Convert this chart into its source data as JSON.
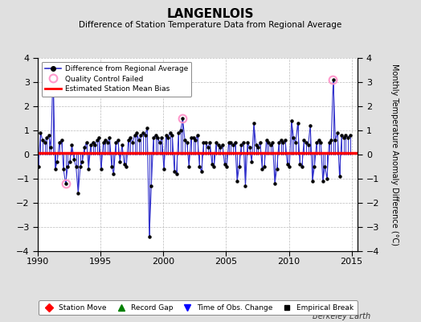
{
  "title": "LANGENLOIS",
  "subtitle": "Difference of Station Temperature Data from Regional Average",
  "ylabel_right": "Monthly Temperature Anomaly Difference (°C)",
  "xlim": [
    1990,
    2015.5
  ],
  "ylim": [
    -4,
    4
  ],
  "yticks": [
    -4,
    -3,
    -2,
    -1,
    0,
    1,
    2,
    3,
    4
  ],
  "xticks": [
    1990,
    1995,
    2000,
    2005,
    2010,
    2015
  ],
  "bias_line": 0.08,
  "bias_color": "#ff0000",
  "line_color": "#3333cc",
  "dot_color": "#000000",
  "qc_color": "#ff99cc",
  "background_color": "#e0e0e0",
  "plot_bg_color": "#ffffff",
  "watermark": "Berkeley Earth",
  "time_of_obs_change_x": 1998.75,
  "qc_failed_points": [
    [
      1992.25,
      -1.2
    ],
    [
      2001.5,
      1.5
    ],
    [
      2013.5,
      3.1
    ]
  ],
  "ts_data": [
    [
      1990.04,
      -0.5
    ],
    [
      1990.21,
      0.9
    ],
    [
      1990.38,
      0.6
    ],
    [
      1990.54,
      0.5
    ],
    [
      1990.71,
      0.7
    ],
    [
      1990.88,
      0.8
    ],
    [
      1991.04,
      0.3
    ],
    [
      1991.21,
      3.5
    ],
    [
      1991.38,
      -0.6
    ],
    [
      1991.54,
      -0.3
    ],
    [
      1991.71,
      0.5
    ],
    [
      1991.88,
      0.6
    ],
    [
      1992.04,
      -0.6
    ],
    [
      1992.21,
      -1.2
    ],
    [
      1992.38,
      -0.5
    ],
    [
      1992.54,
      -0.3
    ],
    [
      1992.71,
      0.4
    ],
    [
      1992.88,
      -0.2
    ],
    [
      1993.04,
      -0.5
    ],
    [
      1993.21,
      -1.6
    ],
    [
      1993.38,
      -0.5
    ],
    [
      1993.54,
      -0.3
    ],
    [
      1993.71,
      0.3
    ],
    [
      1993.88,
      0.5
    ],
    [
      1994.04,
      -0.6
    ],
    [
      1994.21,
      0.4
    ],
    [
      1994.38,
      0.5
    ],
    [
      1994.54,
      0.4
    ],
    [
      1994.71,
      0.6
    ],
    [
      1994.88,
      0.7
    ],
    [
      1995.04,
      -0.6
    ],
    [
      1995.21,
      0.5
    ],
    [
      1995.38,
      0.6
    ],
    [
      1995.54,
      0.5
    ],
    [
      1995.71,
      0.7
    ],
    [
      1995.88,
      -0.5
    ],
    [
      1996.04,
      -0.8
    ],
    [
      1996.21,
      0.5
    ],
    [
      1996.38,
      0.6
    ],
    [
      1996.54,
      -0.3
    ],
    [
      1996.71,
      0.4
    ],
    [
      1996.88,
      -0.4
    ],
    [
      1997.04,
      -0.5
    ],
    [
      1997.21,
      0.6
    ],
    [
      1997.38,
      0.7
    ],
    [
      1997.54,
      0.5
    ],
    [
      1997.71,
      0.8
    ],
    [
      1997.88,
      0.9
    ],
    [
      1998.04,
      0.6
    ],
    [
      1998.21,
      0.8
    ],
    [
      1998.38,
      0.9
    ],
    [
      1998.54,
      0.8
    ],
    [
      1998.71,
      1.1
    ],
    [
      1998.88,
      -3.4
    ],
    [
      1999.04,
      -1.3
    ],
    [
      1999.21,
      0.7
    ],
    [
      1999.38,
      0.8
    ],
    [
      1999.54,
      0.7
    ],
    [
      1999.71,
      0.5
    ],
    [
      1999.88,
      0.7
    ],
    [
      2000.04,
      -0.6
    ],
    [
      2000.21,
      0.8
    ],
    [
      2000.38,
      0.7
    ],
    [
      2000.54,
      0.9
    ],
    [
      2000.71,
      0.8
    ],
    [
      2000.88,
      -0.7
    ],
    [
      2001.04,
      -0.8
    ],
    [
      2001.21,
      0.9
    ],
    [
      2001.38,
      1.0
    ],
    [
      2001.54,
      1.5
    ],
    [
      2001.71,
      0.6
    ],
    [
      2001.88,
      0.5
    ],
    [
      2002.04,
      -0.5
    ],
    [
      2002.21,
      0.7
    ],
    [
      2002.38,
      0.7
    ],
    [
      2002.54,
      0.6
    ],
    [
      2002.71,
      0.8
    ],
    [
      2002.88,
      -0.5
    ],
    [
      2003.04,
      -0.7
    ],
    [
      2003.21,
      0.5
    ],
    [
      2003.38,
      0.5
    ],
    [
      2003.54,
      0.3
    ],
    [
      2003.71,
      0.5
    ],
    [
      2003.88,
      -0.4
    ],
    [
      2004.04,
      -0.5
    ],
    [
      2004.21,
      0.5
    ],
    [
      2004.38,
      0.4
    ],
    [
      2004.54,
      0.3
    ],
    [
      2004.71,
      0.4
    ],
    [
      2004.88,
      -0.4
    ],
    [
      2005.04,
      -0.5
    ],
    [
      2005.21,
      0.5
    ],
    [
      2005.38,
      0.5
    ],
    [
      2005.54,
      0.4
    ],
    [
      2005.71,
      0.5
    ],
    [
      2005.88,
      -1.1
    ],
    [
      2006.04,
      -0.5
    ],
    [
      2006.21,
      0.4
    ],
    [
      2006.38,
      0.5
    ],
    [
      2006.54,
      -1.3
    ],
    [
      2006.71,
      0.5
    ],
    [
      2006.88,
      0.3
    ],
    [
      2007.04,
      -0.3
    ],
    [
      2007.21,
      1.3
    ],
    [
      2007.38,
      0.4
    ],
    [
      2007.54,
      0.3
    ],
    [
      2007.71,
      0.5
    ],
    [
      2007.88,
      -0.6
    ],
    [
      2008.04,
      -0.5
    ],
    [
      2008.21,
      0.6
    ],
    [
      2008.38,
      0.5
    ],
    [
      2008.54,
      0.4
    ],
    [
      2008.71,
      0.5
    ],
    [
      2008.88,
      -1.2
    ],
    [
      2009.04,
      -0.6
    ],
    [
      2009.21,
      0.5
    ],
    [
      2009.38,
      0.6
    ],
    [
      2009.54,
      0.5
    ],
    [
      2009.71,
      0.6
    ],
    [
      2009.88,
      -0.4
    ],
    [
      2010.04,
      -0.5
    ],
    [
      2010.21,
      1.4
    ],
    [
      2010.38,
      0.7
    ],
    [
      2010.54,
      0.5
    ],
    [
      2010.71,
      1.3
    ],
    [
      2010.88,
      -0.4
    ],
    [
      2011.04,
      -0.5
    ],
    [
      2011.21,
      0.6
    ],
    [
      2011.38,
      0.5
    ],
    [
      2011.54,
      0.4
    ],
    [
      2011.71,
      1.2
    ],
    [
      2011.88,
      -1.1
    ],
    [
      2012.04,
      -0.5
    ],
    [
      2012.21,
      0.5
    ],
    [
      2012.38,
      0.6
    ],
    [
      2012.54,
      0.5
    ],
    [
      2012.71,
      -1.1
    ],
    [
      2012.88,
      -0.5
    ],
    [
      2013.04,
      -1.0
    ],
    [
      2013.21,
      0.5
    ],
    [
      2013.38,
      0.6
    ],
    [
      2013.54,
      3.1
    ],
    [
      2013.71,
      0.6
    ],
    [
      2013.88,
      0.9
    ],
    [
      2014.04,
      -0.9
    ],
    [
      2014.21,
      0.8
    ],
    [
      2014.38,
      0.7
    ],
    [
      2014.54,
      0.8
    ],
    [
      2014.71,
      0.7
    ],
    [
      2014.88,
      0.8
    ]
  ]
}
